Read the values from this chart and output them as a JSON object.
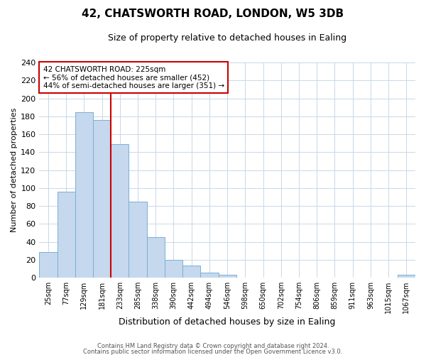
{
  "title": "42, CHATSWORTH ROAD, LONDON, W5 3DB",
  "subtitle": "Size of property relative to detached houses in Ealing",
  "xlabel": "Distribution of detached houses by size in Ealing",
  "ylabel": "Number of detached properties",
  "bin_labels": [
    "25sqm",
    "77sqm",
    "129sqm",
    "181sqm",
    "233sqm",
    "285sqm",
    "338sqm",
    "390sqm",
    "442sqm",
    "494sqm",
    "546sqm",
    "598sqm",
    "650sqm",
    "702sqm",
    "754sqm",
    "806sqm",
    "859sqm",
    "911sqm",
    "963sqm",
    "1015sqm",
    "1067sqm"
  ],
  "bar_heights": [
    29,
    96,
    185,
    176,
    149,
    85,
    45,
    20,
    14,
    6,
    3,
    0,
    0,
    0,
    0,
    0,
    0,
    0,
    0,
    0,
    3
  ],
  "bar_color": "#c5d8ed",
  "bar_edgecolor": "#7bafd4",
  "vline_color": "#cc0000",
  "annotation_title": "42 CHATSWORTH ROAD: 225sqm",
  "annotation_line1": "← 56% of detached houses are smaller (452)",
  "annotation_line2": "44% of semi-detached houses are larger (351) →",
  "annotation_box_edgecolor": "#cc0000",
  "ylim": [
    0,
    240
  ],
  "yticks": [
    0,
    20,
    40,
    60,
    80,
    100,
    120,
    140,
    160,
    180,
    200,
    220,
    240
  ],
  "footer_line1": "Contains HM Land Registry data © Crown copyright and database right 2024.",
  "footer_line2": "Contains public sector information licensed under the Open Government Licence v3.0.",
  "background_color": "#ffffff",
  "grid_color": "#c8d8e8",
  "title_fontsize": 11,
  "subtitle_fontsize": 9,
  "ylabel_fontsize": 8,
  "xlabel_fontsize": 9
}
